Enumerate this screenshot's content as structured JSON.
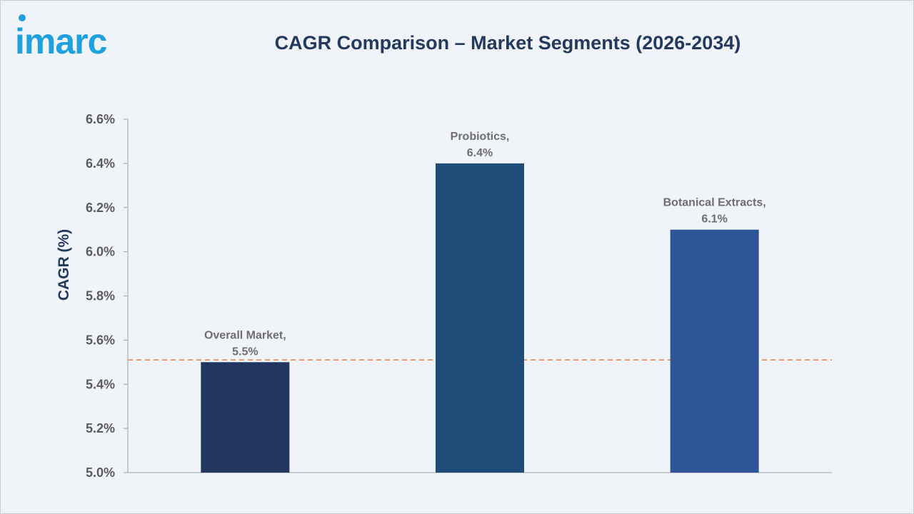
{
  "brand": {
    "name": "imarc",
    "color": "#1ea1dc"
  },
  "colors": {
    "title": "#233a5e",
    "reference_line": "#e88a4f",
    "bars": [
      "#213760",
      "#1f4c79",
      "#2e5598"
    ]
  },
  "chart_data": {
    "type": "bar",
    "title": "CAGR Comparison – Market Segments (2026-2034)",
    "ylabel": "CAGR (%)",
    "xlabel": "",
    "categories": [
      "Overall Market",
      "Probiotics",
      "Botanical Extracts"
    ],
    "values": [
      5.5,
      6.4,
      6.1
    ],
    "data_labels": [
      [
        "Overall Market,",
        "5.5%"
      ],
      [
        "Probiotics,",
        "6.4%"
      ],
      [
        "Botanical Extracts,",
        "6.1%"
      ]
    ],
    "ylim": [
      5.0,
      6.6
    ],
    "yticks": [
      5.0,
      5.2,
      5.4,
      5.6,
      5.8,
      6.0,
      6.2,
      6.4,
      6.6
    ],
    "ytick_labels": [
      "5.0%",
      "5.2%",
      "5.4%",
      "5.6%",
      "5.8%",
      "6.0%",
      "6.2%",
      "6.4%",
      "6.6%"
    ],
    "reference_line": {
      "y": 5.51,
      "style": "dashed"
    },
    "grid": false,
    "legend": "none"
  }
}
